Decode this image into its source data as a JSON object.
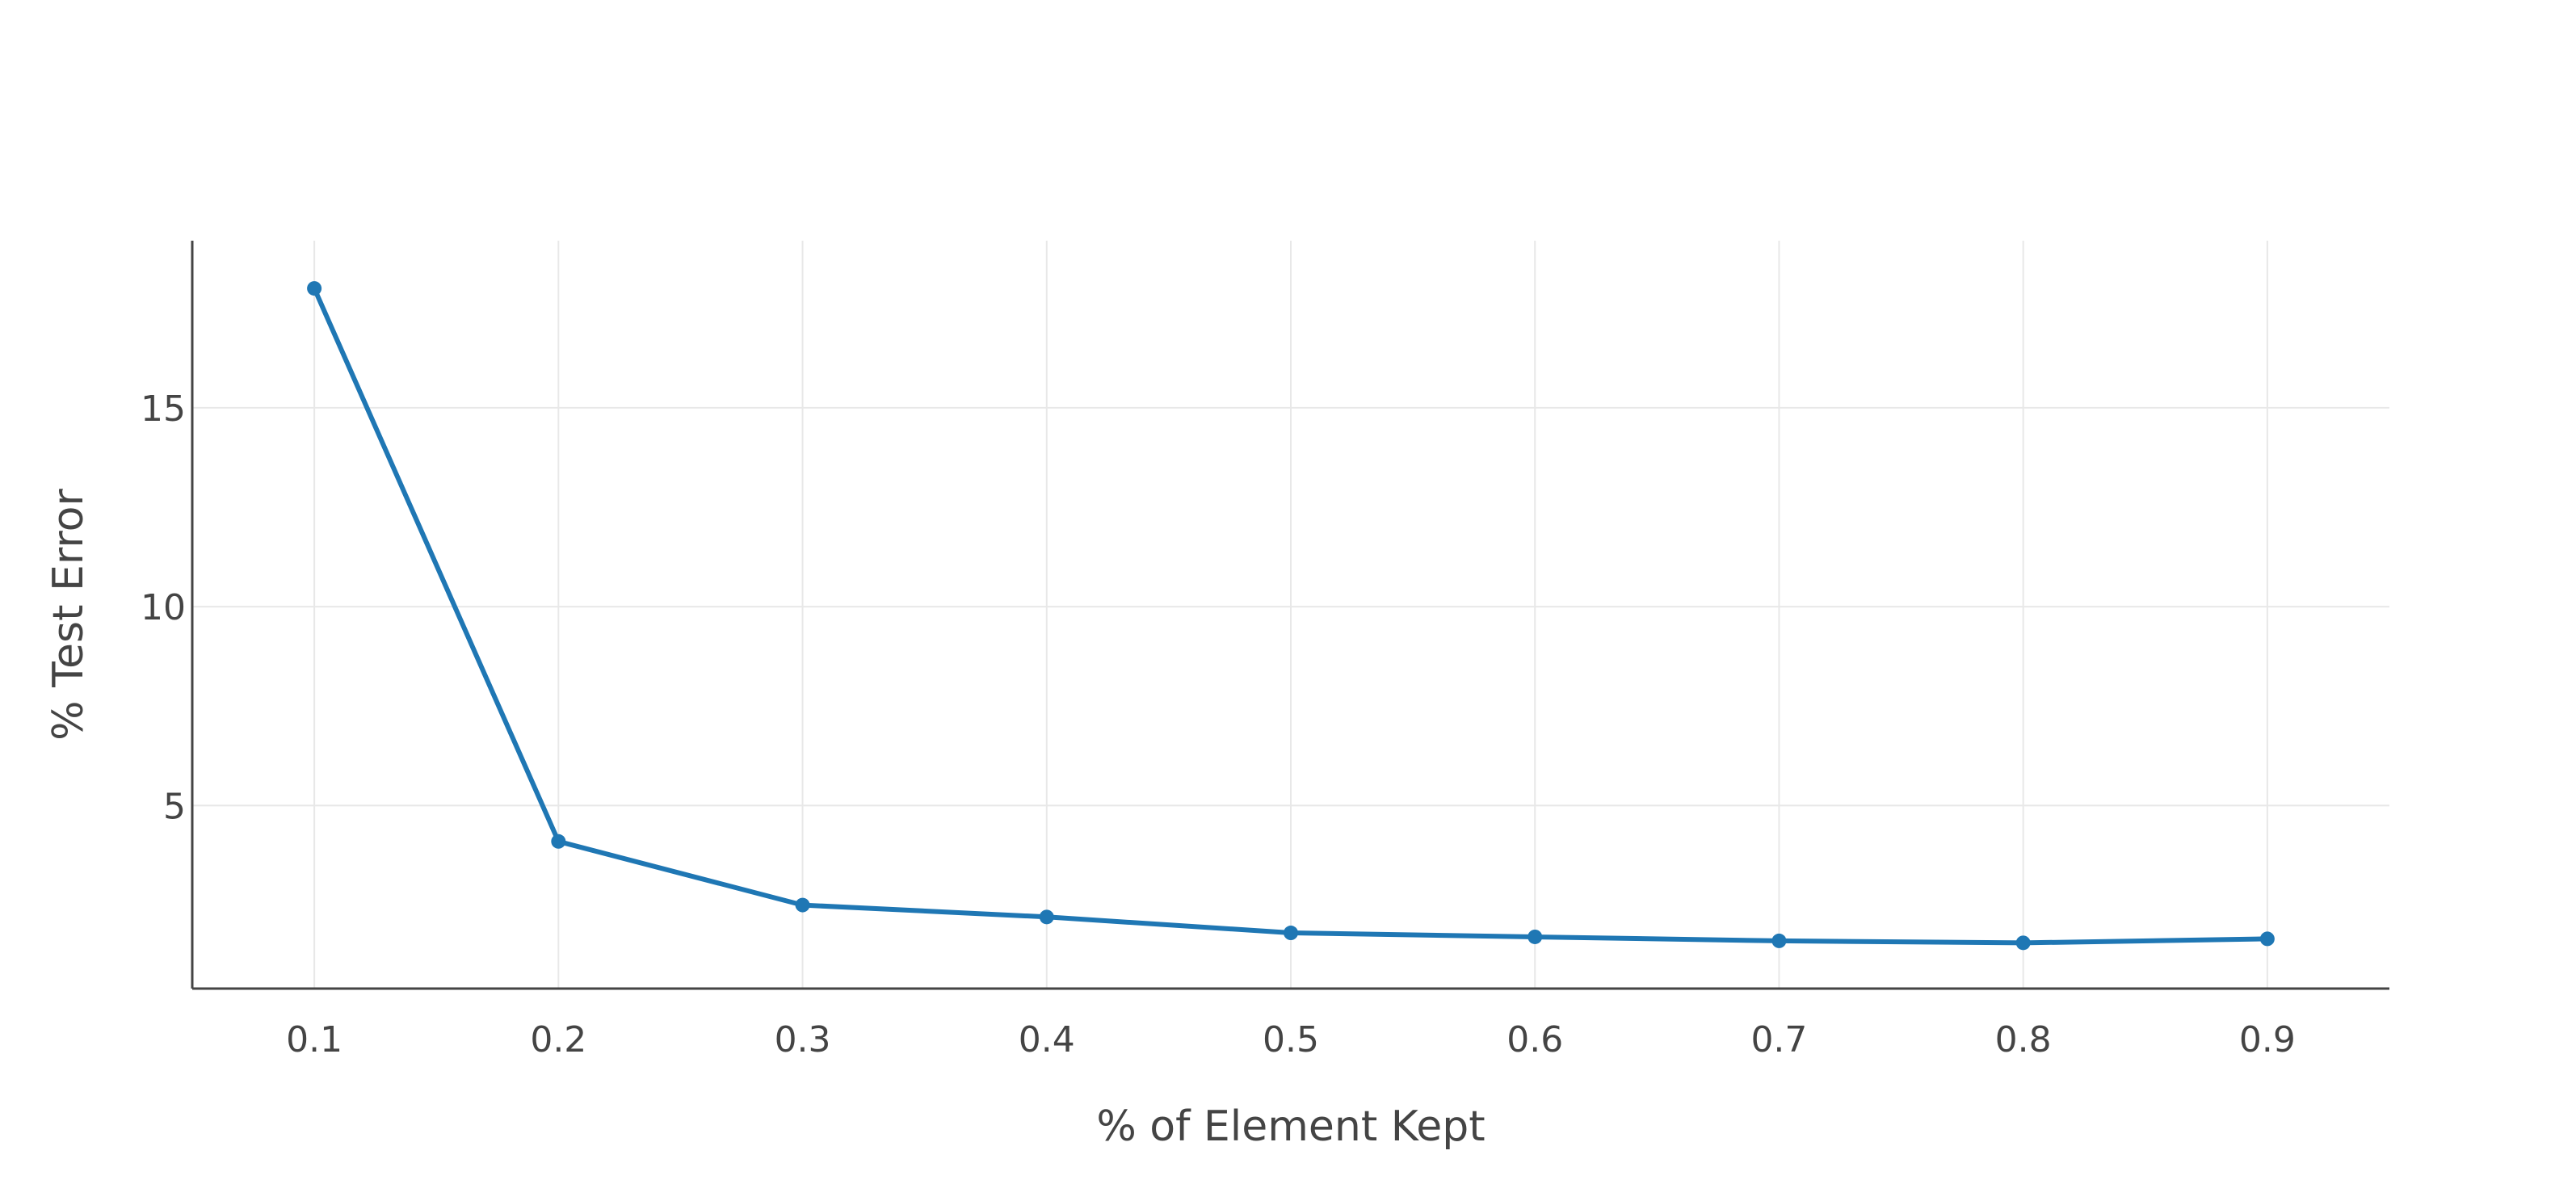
{
  "chart_data": {
    "type": "line",
    "title": "",
    "xlabel": "% of Element Kept",
    "ylabel": "% Test Error",
    "x": [
      0.1,
      0.2,
      0.3,
      0.4,
      0.5,
      0.6,
      0.7,
      0.8,
      0.9
    ],
    "x_tick_labels": [
      "0.1",
      "0.2",
      "0.3",
      "0.4",
      "0.5",
      "0.6",
      "0.7",
      "0.8",
      "0.9"
    ],
    "y_ticks": [
      5,
      10,
      15
    ],
    "y_tick_labels": [
      "5",
      "10",
      "15"
    ],
    "xlim": [
      0.05,
      0.95
    ],
    "ylim": [
      0.4,
      19.2
    ],
    "grid": true,
    "legend": "none",
    "series": [
      {
        "color": "#1f77b4",
        "values": [
          18.0,
          4.1,
          2.5,
          2.2,
          1.8,
          1.7,
          1.6,
          1.55,
          1.65
        ]
      }
    ]
  }
}
